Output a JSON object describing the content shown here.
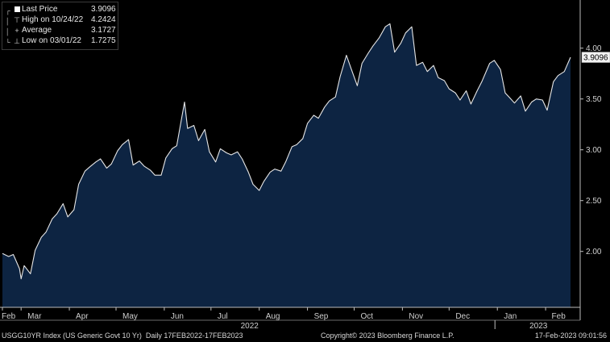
{
  "chart_data": {
    "type": "area",
    "instrument_label": "USGG10YR Index (US Generic Govt 10 Yr)",
    "period_label": "Daily 17FEB2022-17FEB2023",
    "copyright": "Copyright© 2023 Bloomberg Finance L.P.",
    "timestamp": "17-Feb-2023 09:01:56",
    "legend": [
      {
        "label": "Last Price",
        "value": "3.9096"
      },
      {
        "label": "High on 10/24/22",
        "value": "4.2424"
      },
      {
        "label": "Average",
        "value": "3.1727"
      },
      {
        "label": "Low on 03/01/22",
        "value": "1.7275"
      }
    ],
    "last_value_label": "3.9096",
    "ylim": [
      1.45,
      4.45
    ],
    "y_ticks": [
      "2.00",
      "2.50",
      "3.00",
      "3.50",
      "4.00"
    ],
    "y_tick_values": [
      2.0,
      2.5,
      3.0,
      3.5,
      4.0
    ],
    "x_month_labels": [
      "Feb",
      "Mar",
      "Apr",
      "May",
      "Jun",
      "Jul",
      "Aug",
      "Sep",
      "Oct",
      "Nov",
      "Dec",
      "Jan",
      "Feb"
    ],
    "x_month_starts": [
      "2022-02-17",
      "2022-03-01",
      "2022-04-01",
      "2022-05-01",
      "2022-06-01",
      "2022-07-01",
      "2022-08-01",
      "2022-09-01",
      "2022-10-01",
      "2022-11-01",
      "2022-12-01",
      "2023-01-01",
      "2023-02-01"
    ],
    "x_year_labels": [
      "2022",
      "2023"
    ],
    "xlim": [
      "2022-02-17",
      "2023-02-17"
    ],
    "grid": false,
    "colors": {
      "fill": "#0d2442",
      "line": "#e6e6e6",
      "background": "#000000",
      "axis_text": "#d0d0d0"
    },
    "x": [
      "2022-02-17",
      "2022-02-21",
      "2022-02-24",
      "2022-02-28",
      "2022-03-01",
      "2022-03-03",
      "2022-03-07",
      "2022-03-10",
      "2022-03-14",
      "2022-03-17",
      "2022-03-21",
      "2022-03-24",
      "2022-03-28",
      "2022-03-31",
      "2022-04-04",
      "2022-04-07",
      "2022-04-11",
      "2022-04-14",
      "2022-04-18",
      "2022-04-21",
      "2022-04-25",
      "2022-04-28",
      "2022-05-02",
      "2022-05-05",
      "2022-05-09",
      "2022-05-12",
      "2022-05-16",
      "2022-05-19",
      "2022-05-23",
      "2022-05-26",
      "2022-05-30",
      "2022-06-02",
      "2022-06-06",
      "2022-06-09",
      "2022-06-14",
      "2022-06-16",
      "2022-06-20",
      "2022-06-23",
      "2022-06-27",
      "2022-06-30",
      "2022-07-04",
      "2022-07-07",
      "2022-07-11",
      "2022-07-14",
      "2022-07-18",
      "2022-07-21",
      "2022-07-25",
      "2022-07-28",
      "2022-08-01",
      "2022-08-04",
      "2022-08-08",
      "2022-08-11",
      "2022-08-15",
      "2022-08-18",
      "2022-08-22",
      "2022-08-25",
      "2022-08-29",
      "2022-09-01",
      "2022-09-05",
      "2022-09-08",
      "2022-09-12",
      "2022-09-15",
      "2022-09-19",
      "2022-09-22",
      "2022-09-26",
      "2022-09-29",
      "2022-10-03",
      "2022-10-06",
      "2022-10-10",
      "2022-10-13",
      "2022-10-17",
      "2022-10-21",
      "2022-10-24",
      "2022-10-27",
      "2022-10-31",
      "2022-11-03",
      "2022-11-07",
      "2022-11-10",
      "2022-11-14",
      "2022-11-17",
      "2022-11-21",
      "2022-11-24",
      "2022-11-28",
      "2022-12-01",
      "2022-12-05",
      "2022-12-08",
      "2022-12-12",
      "2022-12-15",
      "2022-12-19",
      "2022-12-22",
      "2022-12-27",
      "2022-12-30",
      "2023-01-03",
      "2023-01-06",
      "2023-01-09",
      "2023-01-12",
      "2023-01-16",
      "2023-01-19",
      "2023-01-23",
      "2023-01-26",
      "2023-01-30",
      "2023-02-02",
      "2023-02-06",
      "2023-02-09",
      "2023-02-13",
      "2023-02-17"
    ],
    "values": [
      1.98,
      1.95,
      1.97,
      1.83,
      1.73,
      1.86,
      1.78,
      2.01,
      2.14,
      2.19,
      2.32,
      2.37,
      2.47,
      2.34,
      2.41,
      2.66,
      2.79,
      2.83,
      2.88,
      2.91,
      2.82,
      2.86,
      2.99,
      3.05,
      3.1,
      2.85,
      2.89,
      2.84,
      2.8,
      2.75,
      2.75,
      2.92,
      3.01,
      3.04,
      3.47,
      3.21,
      3.24,
      3.09,
      3.2,
      2.98,
      2.88,
      3.01,
      2.97,
      2.95,
      2.98,
      2.91,
      2.78,
      2.66,
      2.6,
      2.69,
      2.78,
      2.81,
      2.79,
      2.88,
      3.03,
      3.05,
      3.11,
      3.26,
      3.34,
      3.31,
      3.42,
      3.48,
      3.52,
      3.72,
      3.93,
      3.8,
      3.63,
      3.85,
      3.95,
      4.02,
      4.1,
      4.21,
      4.24,
      3.96,
      4.05,
      4.15,
      4.21,
      3.83,
      3.86,
      3.77,
      3.83,
      3.71,
      3.68,
      3.6,
      3.56,
      3.49,
      3.58,
      3.45,
      3.58,
      3.67,
      3.85,
      3.88,
      3.79,
      3.56,
      3.51,
      3.46,
      3.53,
      3.38,
      3.47,
      3.5,
      3.49,
      3.39,
      3.67,
      3.73,
      3.77,
      3.91
    ]
  }
}
